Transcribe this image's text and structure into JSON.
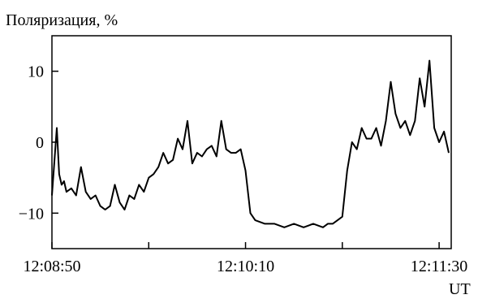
{
  "chart_data": {
    "type": "line",
    "title": "",
    "ylabel": "Поляризация, %",
    "xlabel": "UT",
    "ylim": [
      -15,
      15
    ],
    "xlim": [
      "12:08:50",
      "12:11:35"
    ],
    "grid": false,
    "y_ticks": [
      -10,
      0,
      10
    ],
    "y_tick_labels": [
      "−10",
      "0",
      "10"
    ],
    "x_ticks": [
      "12:08:50",
      "12:09:30",
      "12:10:10",
      "12:10:50",
      "12:11:30"
    ],
    "x_tick_labels": [
      "12:08:50",
      "",
      "12:10:10",
      "",
      "12:11:30"
    ],
    "series": [
      {
        "color": "#000000",
        "x": [
          "12:08:50",
          "12:08:52",
          "12:08:53",
          "12:08:54",
          "12:08:55",
          "12:08:56",
          "12:08:58",
          "12:09:00",
          "12:09:02",
          "12:09:04",
          "12:09:06",
          "12:09:08",
          "12:09:10",
          "12:09:12",
          "12:09:14",
          "12:09:16",
          "12:09:18",
          "12:09:20",
          "12:09:22",
          "12:09:24",
          "12:09:26",
          "12:09:28",
          "12:09:30",
          "12:09:32",
          "12:09:34",
          "12:09:36",
          "12:09:38",
          "12:09:40",
          "12:09:42",
          "12:09:44",
          "12:09:46",
          "12:09:48",
          "12:09:50",
          "12:09:52",
          "12:09:54",
          "12:09:56",
          "12:09:58",
          "12:10:00",
          "12:10:02",
          "12:10:04",
          "12:10:06",
          "12:10:08",
          "12:10:10",
          "12:10:12",
          "12:10:14",
          "12:10:18",
          "12:10:22",
          "12:10:26",
          "12:10:30",
          "12:10:34",
          "12:10:38",
          "12:10:42",
          "12:10:44",
          "12:10:46",
          "12:10:48",
          "12:10:50",
          "12:10:52",
          "12:10:54",
          "12:10:56",
          "12:10:58",
          "12:11:00",
          "12:11:02",
          "12:11:04",
          "12:11:06",
          "12:11:08",
          "12:11:10",
          "12:11:12",
          "12:11:14",
          "12:11:16",
          "12:11:18",
          "12:11:20",
          "12:11:22",
          "12:11:24",
          "12:11:26",
          "12:11:28",
          "12:11:30",
          "12:11:32",
          "12:11:34"
        ],
        "values": [
          -7.5,
          2,
          -4.5,
          -6,
          -5.5,
          -7,
          -6.5,
          -7.5,
          -3.5,
          -7,
          -8,
          -7.5,
          -9,
          -9.5,
          -9,
          -6,
          -8.5,
          -9.5,
          -7.5,
          -8,
          -6,
          -7,
          -5,
          -4.5,
          -3.5,
          -1.5,
          -3,
          -2.5,
          0.5,
          -1,
          3,
          -3,
          -1.5,
          -2,
          -1,
          -0.5,
          -2,
          3,
          -1,
          -1.5,
          -1.5,
          -1,
          -4,
          -10,
          -11,
          -11.5,
          -11.5,
          -12,
          -11.5,
          -12,
          -11.5,
          -12,
          -11.5,
          -11.5,
          -11,
          -10.5,
          -4,
          0,
          -1,
          2,
          0.5,
          0.5,
          2,
          -0.5,
          3,
          8.5,
          4,
          2,
          3,
          1,
          3,
          9,
          5,
          11.5,
          2,
          0,
          1.5,
          -1.5
        ]
      }
    ]
  }
}
